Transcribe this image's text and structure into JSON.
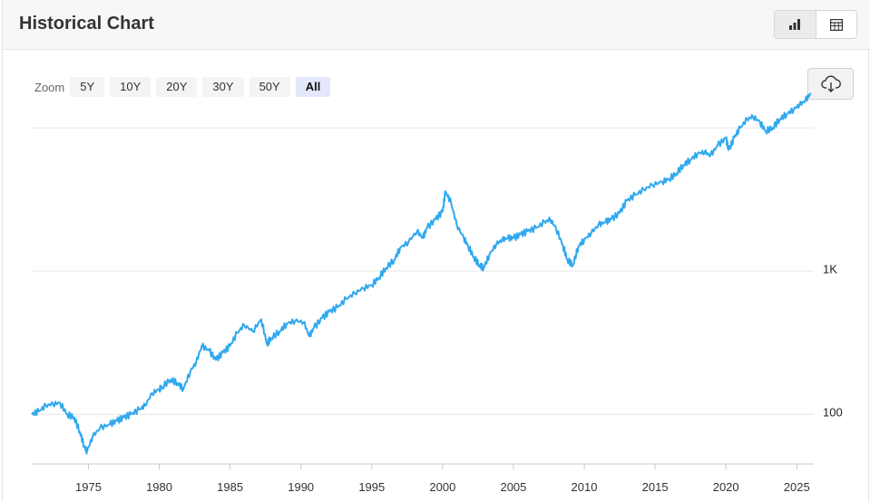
{
  "header": {
    "title": "Historical Chart"
  },
  "view_toggle": {
    "chart_icon": "bar-chart-icon",
    "table_icon": "table-icon",
    "active": "chart"
  },
  "zoom": {
    "label": "Zoom",
    "options": [
      "5Y",
      "10Y",
      "20Y",
      "30Y",
      "50Y",
      "All"
    ],
    "selected": "All"
  },
  "download": {
    "icon": "cloud-download-icon"
  },
  "colors": {
    "line": "#2fa8ee",
    "grid": "#e6e6e6",
    "accent_selected": "#e5e8fb"
  },
  "chart_data": {
    "type": "line",
    "title": "",
    "xlabel": "",
    "ylabel": "",
    "yscale": "log",
    "grid": "horizontal",
    "x_ticks": [
      1975,
      1980,
      1985,
      1990,
      1995,
      2000,
      2005,
      2010,
      2015,
      2020,
      2025
    ],
    "y_ticks": [
      {
        "value": 100,
        "label": "100"
      },
      {
        "value": 1000,
        "label": "1K"
      }
    ],
    "xlim": [
      1971.0,
      2026.2
    ],
    "ylim": [
      45,
      14000
    ],
    "series": [
      {
        "x": [
          1971.0,
          1971.5,
          1972.0,
          1972.5,
          1973.0,
          1973.5,
          1974.0,
          1974.4,
          1974.7,
          1974.9,
          1975.3,
          1975.8,
          1976.5,
          1977.0,
          1977.5,
          1978.0,
          1978.6,
          1979.0,
          1979.5,
          1980.0,
          1980.2,
          1980.8,
          1981.3,
          1981.7,
          1982.2,
          1982.6,
          1983.0,
          1983.5,
          1984.0,
          1984.5,
          1985.0,
          1985.5,
          1986.0,
          1986.6,
          1987.2,
          1987.6,
          1987.9,
          1988.5,
          1989.0,
          1989.6,
          1990.2,
          1990.6,
          1990.9,
          1991.5,
          1992.0,
          1992.6,
          1993.2,
          1993.8,
          1994.4,
          1995.0,
          1995.5,
          1996.0,
          1996.6,
          1997.0,
          1997.6,
          1998.2,
          1998.6,
          1998.9,
          1999.5,
          2000.0,
          2000.2,
          2000.6,
          2001.0,
          2001.5,
          2001.8,
          2002.2,
          2002.6,
          2002.9,
          2003.3,
          2003.8,
          2004.2,
          2004.6,
          2005.0,
          2005.5,
          2006.0,
          2006.6,
          2007.2,
          2007.6,
          2008.0,
          2008.5,
          2008.8,
          2009.2,
          2009.6,
          2010.0,
          2010.5,
          2011.0,
          2011.5,
          2011.9,
          2012.5,
          2013.0,
          2013.6,
          2014.2,
          2014.8,
          2015.5,
          2016.0,
          2016.5,
          2017.0,
          2017.5,
          2018.0,
          2018.5,
          2018.9,
          2019.4,
          2020.0,
          2020.2,
          2020.6,
          2021.0,
          2021.5,
          2021.9,
          2022.4,
          2022.8,
          2023.3,
          2023.8,
          2024.3,
          2024.8,
          2025.2,
          2025.6,
          2026.0
        ],
        "values": [
          100,
          105,
          115,
          118,
          120,
          100,
          95,
          75,
          60,
          55,
          70,
          80,
          85,
          90,
          95,
          100,
          108,
          115,
          140,
          150,
          155,
          175,
          165,
          150,
          200,
          230,
          300,
          280,
          240,
          270,
          300,
          370,
          420,
          380,
          460,
          310,
          340,
          380,
          430,
          450,
          440,
          350,
          400,
          470,
          520,
          560,
          640,
          700,
          760,
          800,
          900,
          1050,
          1200,
          1450,
          1600,
          1900,
          1700,
          2000,
          2300,
          2600,
          3600,
          3000,
          2100,
          1700,
          1500,
          1250,
          1100,
          1050,
          1300,
          1550,
          1650,
          1700,
          1700,
          1800,
          1900,
          2000,
          2200,
          2300,
          2000,
          1500,
          1200,
          1100,
          1500,
          1650,
          1850,
          2100,
          2200,
          2300,
          2550,
          3100,
          3400,
          3700,
          4000,
          4200,
          4400,
          4800,
          5500,
          6000,
          6600,
          6800,
          6400,
          7500,
          8500,
          7000,
          8600,
          10000,
          11500,
          12000,
          11000,
          9500,
          10000,
          11500,
          12500,
          13500,
          14500,
          15500,
          17500
        ]
      }
    ]
  }
}
